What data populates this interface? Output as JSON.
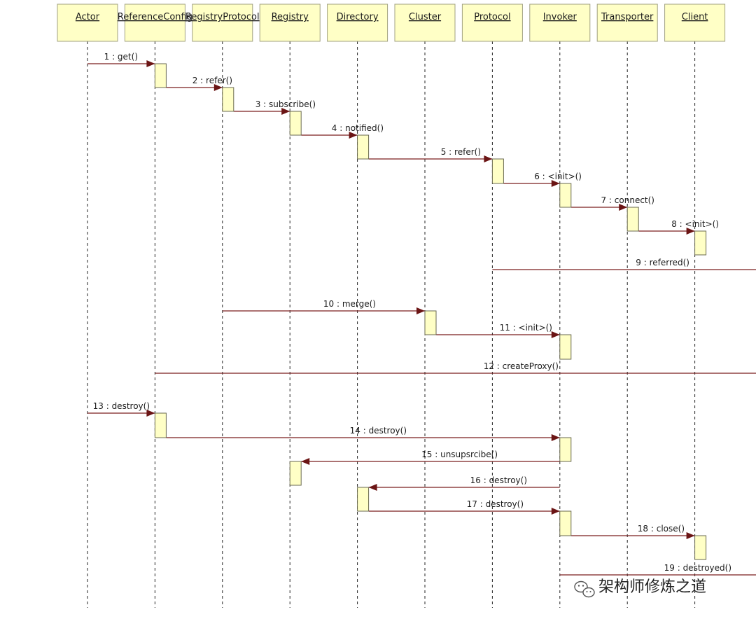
{
  "participants": [
    "Actor",
    "ReferenceConfig",
    "RegistryProtocol",
    "Registry",
    "Directory",
    "Cluster",
    "Protocol",
    "Invoker",
    "Transporter",
    "Client"
  ],
  "messages": [
    {
      "label": "1 : get()",
      "from": 0,
      "to": 1
    },
    {
      "label": "2 : refer()",
      "from": 1,
      "to": 2
    },
    {
      "label": "3 : subscribe()",
      "from": 2,
      "to": 3
    },
    {
      "label": "4 : notified()",
      "from": 3,
      "to": 4
    },
    {
      "label": "5 : refer()",
      "from": 4,
      "to": 6
    },
    {
      "label": "6 : <init>()",
      "from": 6,
      "to": 7
    },
    {
      "label": "7 : connect()",
      "from": 7,
      "to": 8
    },
    {
      "label": "8 : <init>()",
      "from": 8,
      "to": 9
    },
    {
      "label": "9 : referred()",
      "from": 6,
      "to": 10
    },
    {
      "label": "10 : merge()",
      "from": 2,
      "to": 5
    },
    {
      "label": "11 : <init>()",
      "from": 5,
      "to": 7
    },
    {
      "label": "12 : createProxy()",
      "from": 1,
      "to": 10
    },
    {
      "label": "13 : destroy()",
      "from": 0,
      "to": 1
    },
    {
      "label": "14 : destroy()",
      "from": 1,
      "to": 7
    },
    {
      "label": "15 : unsupsrcibe()",
      "from": 7,
      "to": 3
    },
    {
      "label": "16 : destroy()",
      "from": 7,
      "to": 4
    },
    {
      "label": "17 : destroy()",
      "from": 4,
      "to": 7
    },
    {
      "label": "18 : close()",
      "from": 7,
      "to": 9
    },
    {
      "label": "19 : destroyed()",
      "from": 7,
      "to": 10
    }
  ],
  "watermark": {
    "text": "架构师修炼之道",
    "icon": "wechat-icon"
  },
  "colors": {
    "box_fill": "#ffffc6",
    "arrow": "#7a1f1f",
    "lifeline": "#222222"
  }
}
